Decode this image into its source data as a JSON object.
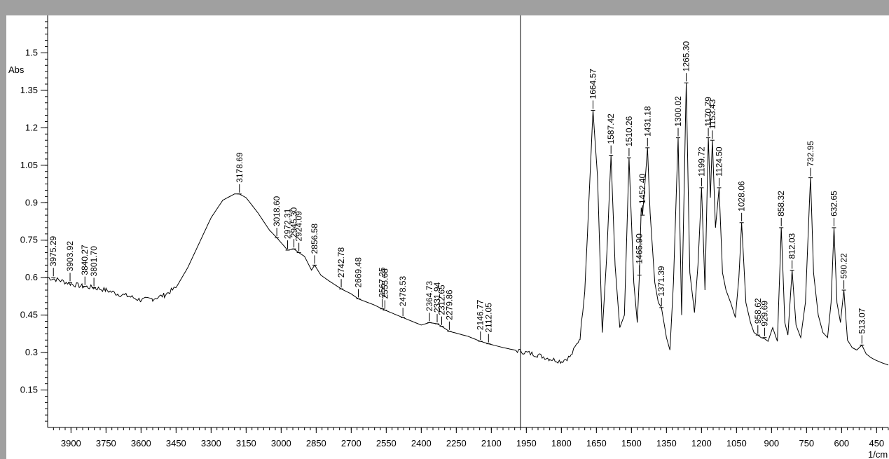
{
  "chart_data": {
    "type": "line",
    "title": "",
    "xlabel": "1/cm",
    "ylabel": "Abs",
    "xlim": [
      4000,
      400
    ],
    "ylim": [
      0.0,
      1.65
    ],
    "x_reversed": true,
    "grid": false,
    "x_ticks": [
      3900,
      3750,
      3600,
      3450,
      3300,
      3150,
      3000,
      2850,
      2700,
      2550,
      2400,
      2250,
      2100,
      1950,
      1800,
      1650,
      1500,
      1350,
      1200,
      1050,
      900,
      750,
      600,
      450
    ],
    "x_tick_labels": [
      "3900",
      "3750",
      "3600",
      "3450",
      "3300",
      "3150",
      "3000",
      "2850",
      "2700",
      "2550",
      "2400",
      "2250",
      "2100",
      "1950",
      "1800",
      "1650",
      "1500",
      "1350",
      "1200",
      "1050",
      "900",
      "750",
      "600",
      "450"
    ],
    "y_ticks": [
      0.15,
      0.3,
      0.45,
      0.6,
      0.75,
      0.9,
      1.05,
      1.2,
      1.35,
      1.5
    ],
    "y_tick_labels": [
      "0.15",
      "0.3",
      "0.45",
      "0.6",
      "0.75",
      "0.9",
      "1.05",
      "1.2",
      "1.35",
      "1.5"
    ],
    "cursor_x": 1975,
    "series": [
      {
        "x": [
          4000,
          3950,
          3900,
          3850,
          3800,
          3750,
          3700,
          3650,
          3600,
          3550,
          3500,
          3450,
          3400,
          3350,
          3300,
          3250,
          3200,
          3178.69,
          3150,
          3100,
          3050,
          3018.6,
          2972.31,
          2945.3,
          2924.09,
          2900,
          2870,
          2856.58,
          2830,
          2800,
          2742.78,
          2700,
          2669.48,
          2600,
          2567.25,
          2555.68,
          2478.53,
          2400,
          2364.73,
          2331.94,
          2312.65,
          2279.86,
          2200,
          2146.77,
          2112.05,
          2050,
          2000,
          1950,
          1900,
          1850,
          1800,
          1760,
          1720,
          1700,
          1680,
          1664.57,
          1645,
          1625,
          1605,
          1587.42,
          1570,
          1550,
          1530,
          1510.26,
          1490,
          1475,
          1465.9,
          1458,
          1452.4,
          1445,
          1431.18,
          1420,
          1400,
          1385,
          1371.39,
          1350,
          1335,
          1320,
          1300.02,
          1285,
          1265.3,
          1250,
          1230,
          1215,
          1199.72,
          1185,
          1170.79,
          1162,
          1153.43,
          1140,
          1124.5,
          1110,
          1095,
          1075,
          1055,
          1040,
          1028.06,
          1010,
          990,
          975,
          958.62,
          945,
          929.69,
          915,
          895,
          875,
          858.32,
          843,
          830,
          812.03,
          795,
          775,
          755,
          740,
          732.95,
          720,
          700,
          680,
          660,
          645,
          632.65,
          620,
          605,
          590.22,
          575,
          555,
          535,
          513.07,
          495,
          475,
          455,
          430,
          400
        ],
        "y": [
          0.6,
          0.59,
          0.575,
          0.565,
          0.56,
          0.55,
          0.535,
          0.525,
          0.51,
          0.515,
          0.53,
          0.56,
          0.64,
          0.74,
          0.84,
          0.91,
          0.935,
          0.935,
          0.92,
          0.86,
          0.79,
          0.76,
          0.71,
          0.715,
          0.7,
          0.685,
          0.63,
          0.65,
          0.61,
          0.59,
          0.555,
          0.535,
          0.515,
          0.49,
          0.475,
          0.47,
          0.44,
          0.41,
          0.42,
          0.415,
          0.405,
          0.385,
          0.365,
          0.345,
          0.335,
          0.32,
          0.31,
          0.3,
          0.29,
          0.275,
          0.265,
          0.285,
          0.36,
          0.55,
          0.95,
          1.27,
          1.0,
          0.38,
          0.7,
          1.09,
          0.65,
          0.4,
          0.45,
          1.08,
          0.58,
          0.42,
          0.61,
          0.88,
          0.85,
          0.94,
          1.12,
          0.86,
          0.58,
          0.5,
          0.48,
          0.36,
          0.31,
          0.58,
          1.16,
          0.45,
          1.38,
          0.62,
          0.46,
          0.65,
          0.96,
          0.55,
          1.16,
          0.92,
          1.15,
          0.8,
          0.96,
          0.62,
          0.55,
          0.5,
          0.44,
          0.6,
          0.82,
          0.5,
          0.42,
          0.38,
          0.37,
          0.36,
          0.355,
          0.345,
          0.4,
          0.345,
          0.8,
          0.42,
          0.37,
          0.63,
          0.41,
          0.36,
          0.5,
          0.85,
          1.0,
          0.62,
          0.45,
          0.38,
          0.36,
          0.5,
          0.8,
          0.5,
          0.42,
          0.55,
          0.35,
          0.32,
          0.31,
          0.33,
          0.295,
          0.28,
          0.27,
          0.26,
          0.25
        ]
      }
    ],
    "peaks": [
      {
        "x": 3975.29,
        "y": 0.6,
        "label": "3975.29"
      },
      {
        "x": 3903.92,
        "y": 0.58,
        "label": "3903.92"
      },
      {
        "x": 3840.27,
        "y": 0.565,
        "label": "3840.27"
      },
      {
        "x": 3801.7,
        "y": 0.56,
        "label": "3801.70"
      },
      {
        "x": 3178.69,
        "y": 0.935,
        "label": "3178.69"
      },
      {
        "x": 3018.6,
        "y": 0.76,
        "label": "3018.60"
      },
      {
        "x": 2972.31,
        "y": 0.71,
        "label": "2972.31"
      },
      {
        "x": 2945.3,
        "y": 0.715,
        "label": "2945.30"
      },
      {
        "x": 2924.09,
        "y": 0.7,
        "label": "2924.09"
      },
      {
        "x": 2856.58,
        "y": 0.65,
        "label": "2856.58"
      },
      {
        "x": 2742.78,
        "y": 0.555,
        "label": "2742.78"
      },
      {
        "x": 2669.48,
        "y": 0.515,
        "label": "2669.48"
      },
      {
        "x": 2567.25,
        "y": 0.475,
        "label": "2567.25"
      },
      {
        "x": 2555.68,
        "y": 0.47,
        "label": "2555.68"
      },
      {
        "x": 2478.53,
        "y": 0.44,
        "label": "2478.53"
      },
      {
        "x": 2364.73,
        "y": 0.42,
        "label": "2364.73"
      },
      {
        "x": 2331.94,
        "y": 0.415,
        "label": "2331.94"
      },
      {
        "x": 2312.65,
        "y": 0.405,
        "label": "2312.65"
      },
      {
        "x": 2279.86,
        "y": 0.385,
        "label": "2279.86"
      },
      {
        "x": 2146.77,
        "y": 0.345,
        "label": "2146.77"
      },
      {
        "x": 2112.05,
        "y": 0.335,
        "label": "2112.05"
      },
      {
        "x": 1664.57,
        "y": 1.27,
        "label": "1664.57"
      },
      {
        "x": 1587.42,
        "y": 1.09,
        "label": "1587.42"
      },
      {
        "x": 1510.26,
        "y": 1.08,
        "label": "1510.26"
      },
      {
        "x": 1465.9,
        "y": 0.61,
        "label": "1465.90"
      },
      {
        "x": 1452.4,
        "y": 0.85,
        "label": "1452.40"
      },
      {
        "x": 1431.18,
        "y": 1.12,
        "label": "1431.18"
      },
      {
        "x": 1371.39,
        "y": 0.48,
        "label": "1371.39"
      },
      {
        "x": 1300.02,
        "y": 1.16,
        "label": "1300.02"
      },
      {
        "x": 1265.3,
        "y": 1.38,
        "label": "1265.30"
      },
      {
        "x": 1199.72,
        "y": 0.96,
        "label": "1199.72"
      },
      {
        "x": 1170.79,
        "y": 1.16,
        "label": "1170.79"
      },
      {
        "x": 1153.43,
        "y": 1.15,
        "label": "1153.43"
      },
      {
        "x": 1124.5,
        "y": 0.96,
        "label": "1124.50"
      },
      {
        "x": 1028.06,
        "y": 0.82,
        "label": "1028.06"
      },
      {
        "x": 958.62,
        "y": 0.37,
        "label": "958.62"
      },
      {
        "x": 929.69,
        "y": 0.36,
        "label": "929.69"
      },
      {
        "x": 858.32,
        "y": 0.8,
        "label": "858.32"
      },
      {
        "x": 812.03,
        "y": 0.63,
        "label": "812.03"
      },
      {
        "x": 732.95,
        "y": 1.0,
        "label": "732.95"
      },
      {
        "x": 632.65,
        "y": 0.8,
        "label": "632.65"
      },
      {
        "x": 590.22,
        "y": 0.55,
        "label": "590.22"
      },
      {
        "x": 513.07,
        "y": 0.33,
        "label": "513.07"
      }
    ],
    "colors": {
      "line": "#000000",
      "background": "#ffffff",
      "frame": "#a0a0a0"
    }
  }
}
